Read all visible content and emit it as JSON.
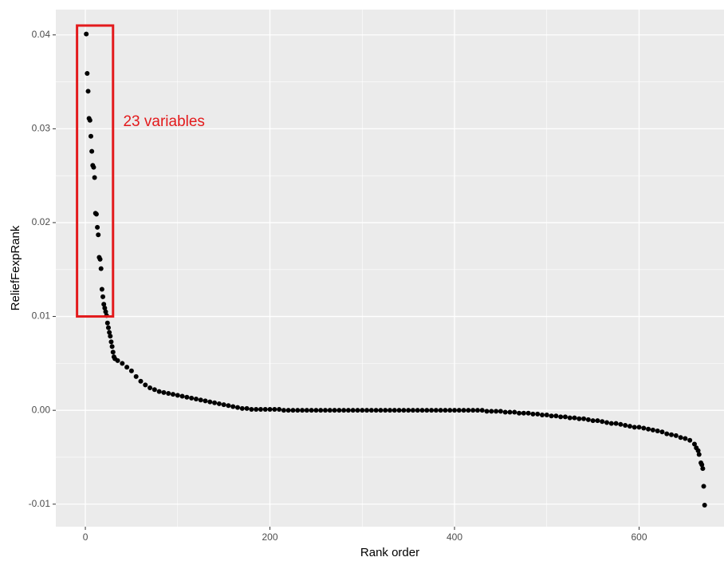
{
  "chart_data": {
    "type": "scatter",
    "x_label": "Rank order",
    "y_label": "ReliefFexpRank",
    "xlim": [
      -32,
      692
    ],
    "ylim": [
      -0.0124,
      0.0427
    ],
    "xticks": [
      0,
      200,
      400,
      600
    ],
    "minor_xticks": [
      100,
      300,
      500
    ],
    "yticks": [
      -0.01,
      {
        "value": 0,
        "label": "0.00"
      },
      0.01,
      0.02,
      0.03,
      0.04
    ],
    "minor_yticks": [
      -0.005,
      0.005,
      0.015,
      0.025,
      0.035
    ],
    "grid": true,
    "panel_color": "#ebebeb",
    "series": [
      {
        "color": "#000000",
        "x": [
          1,
          2,
          3,
          4,
          5,
          6,
          7,
          8,
          9,
          10,
          11,
          12,
          13,
          14,
          15,
          16,
          17,
          18,
          19,
          20,
          21,
          22,
          23,
          24,
          25,
          26,
          27,
          28,
          29,
          30,
          31,
          32,
          35,
          40,
          45,
          50,
          55,
          60,
          65,
          70,
          75,
          80,
          85,
          90,
          95,
          100,
          105,
          110,
          115,
          120,
          125,
          130,
          135,
          140,
          145,
          150,
          155,
          160,
          165,
          170,
          175,
          180,
          185,
          190,
          195,
          200,
          205,
          210,
          215,
          220,
          225,
          230,
          235,
          240,
          245,
          250,
          255,
          260,
          265,
          270,
          275,
          280,
          285,
          290,
          295,
          300,
          305,
          310,
          315,
          320,
          325,
          330,
          335,
          340,
          345,
          350,
          355,
          360,
          365,
          370,
          375,
          380,
          385,
          390,
          395,
          400,
          405,
          410,
          415,
          420,
          425,
          430,
          435,
          440,
          445,
          450,
          455,
          460,
          465,
          470,
          475,
          480,
          485,
          490,
          495,
          500,
          505,
          510,
          515,
          520,
          525,
          530,
          535,
          540,
          545,
          550,
          555,
          560,
          565,
          570,
          575,
          580,
          585,
          590,
          595,
          600,
          605,
          610,
          615,
          620,
          625,
          630,
          635,
          640,
          645,
          650,
          655,
          660,
          662,
          664,
          665,
          667,
          668,
          669,
          670,
          671
        ],
        "values": [
          0.0401,
          0.0359,
          0.034,
          0.0311,
          0.0309,
          0.0292,
          0.0276,
          0.0261,
          0.0259,
          0.0248,
          0.021,
          0.0209,
          0.0195,
          0.0187,
          0.0163,
          0.0161,
          0.0151,
          0.0129,
          0.0121,
          0.0113,
          0.0109,
          0.0105,
          0.0101,
          0.0093,
          0.0088,
          0.0083,
          0.0079,
          0.0073,
          0.0068,
          0.0062,
          0.0057,
          0.0055,
          0.0053,
          0.005,
          0.0046,
          0.0042,
          0.0036,
          0.0031,
          0.0027,
          0.0024,
          0.0022,
          0.002,
          0.0019,
          0.0018,
          0.0017,
          0.0016,
          0.0015,
          0.0014,
          0.0013,
          0.0012,
          0.0011,
          0.001,
          0.0009,
          0.0008,
          0.0007,
          0.0006,
          0.0005,
          0.0004,
          0.0003,
          0.0002,
          0.0002,
          0.0001,
          0.0001,
          0.0001,
          0.0001,
          0.0001,
          0.0001,
          0.0001,
          0,
          0,
          0,
          0,
          0,
          0,
          0,
          0,
          0,
          0,
          0,
          0,
          0,
          0,
          0,
          0,
          0,
          0,
          0,
          0,
          0,
          0,
          0,
          0,
          0,
          0,
          0,
          0,
          0,
          0,
          0,
          0,
          0,
          0,
          0,
          0,
          0,
          0,
          0,
          0,
          0,
          0,
          0,
          0,
          -0.0001,
          -0.0001,
          -0.0001,
          -0.0001,
          -0.0002,
          -0.0002,
          -0.0002,
          -0.0003,
          -0.0003,
          -0.0003,
          -0.0004,
          -0.0004,
          -0.0005,
          -0.0005,
          -0.0006,
          -0.0006,
          -0.0007,
          -0.0007,
          -0.0008,
          -0.0008,
          -0.0009,
          -0.0009,
          -0.001,
          -0.0011,
          -0.0011,
          -0.0012,
          -0.0013,
          -0.0014,
          -0.0014,
          -0.0015,
          -0.0016,
          -0.0017,
          -0.0018,
          -0.0018,
          -0.0019,
          -0.002,
          -0.0021,
          -0.0022,
          -0.0023,
          -0.0025,
          -0.0026,
          -0.0027,
          -0.0029,
          -0.003,
          -0.0032,
          -0.0036,
          -0.004,
          -0.0043,
          -0.0047,
          -0.0056,
          -0.0058,
          -0.0062,
          -0.0081,
          -0.0101
        ]
      }
    ],
    "highlight_box": {
      "x": [
        -9,
        30
      ],
      "y": [
        0.01,
        0.041
      ],
      "color": "#e31a1c"
    },
    "annotation": {
      "text": "23 variables",
      "x": 41,
      "y": 0.0307,
      "color": "#e31a1c"
    }
  }
}
